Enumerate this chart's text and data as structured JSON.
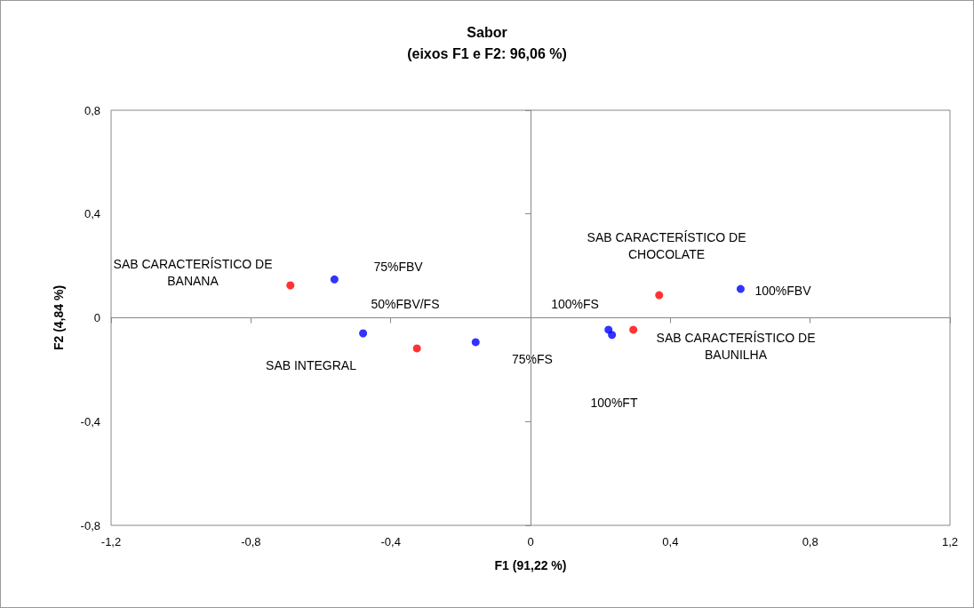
{
  "chart_data": {
    "type": "scatter",
    "title": "Sabor",
    "subtitle": "(eixos F1 e F2: 96,06 %)",
    "xlabel": "F1 (91,22 %)",
    "ylabel": "F2 (4,84 %)",
    "series": [
      {
        "color": "#0000ff",
        "x": [
          -0.561,
          -0.479,
          -0.157,
          0.223,
          0.233,
          0.601
        ],
        "values": [
          0.148,
          -0.06,
          -0.094,
          -0.046,
          -0.066,
          0.111
        ]
      },
      {
        "color": "#ff0000",
        "x": [
          -0.687,
          -0.325,
          0.294,
          0.368
        ],
        "values": [
          0.125,
          -0.118,
          -0.046,
          0.087
        ]
      }
    ],
    "annotations": [
      "75%FBV",
      "SAB CARACTERÍSTICO DE\nBANANA",
      "50%FBV/FS",
      "SAB INTEGRAL",
      "75%FS",
      "100%FS",
      "100%FT",
      "SAB CARACTERÍSTICO DE\nCHOCOLATE",
      "100%FBV",
      "SAB CARACTERÍSTICO DE\nBAUNILHA"
    ],
    "xlim": [
      -1.2,
      1.2
    ],
    "xticks": [
      {
        "value": -1.2,
        "label": "-1,2"
      },
      {
        "value": -0.8,
        "label": "-0,8"
      },
      {
        "value": -0.4,
        "label": "-0,4"
      },
      0,
      {
        "value": 0.4,
        "label": "0,4"
      },
      {
        "value": 0.8,
        "label": "0,8"
      },
      {
        "value": 1.2,
        "label": "1,2"
      }
    ],
    "ylim": [
      -0.8,
      0.8
    ],
    "yticks": [
      {
        "value": -0.8,
        "label": "-0,8"
      },
      {
        "value": -0.4,
        "label": "-0,4"
      },
      0,
      {
        "value": 0.4,
        "label": "0,4"
      },
      {
        "value": 0.8,
        "label": "0,8"
      }
    ],
    "marker": "circle"
  }
}
